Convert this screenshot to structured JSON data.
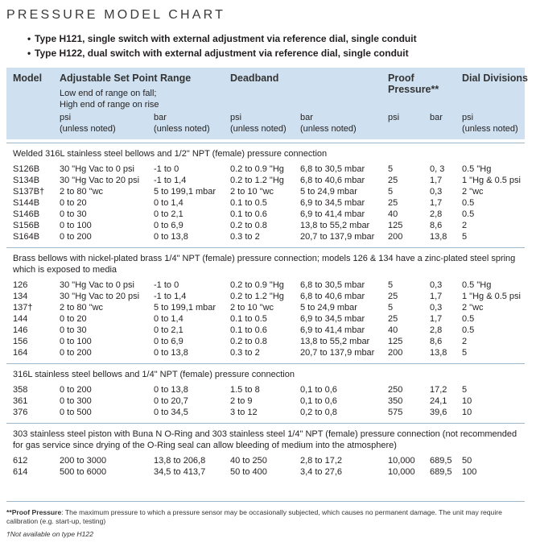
{
  "title": "PRESSURE MODEL CHART",
  "bullets": [
    "Type H121, single switch with external adjustment via reference dial, single conduit",
    "Type H122, dual switch with external adjustment via reference dial, single conduit"
  ],
  "header": {
    "model": "Model",
    "range": "Adjustable Set Point Range",
    "range_note1": "Low end of range on fall;",
    "range_note2": "High end of range on rise",
    "deadband": "Deadband",
    "proof1": "Proof",
    "proof2": "Pressure**",
    "dial": "Dial Divisions",
    "psi": "psi",
    "bar": "bar",
    "unless": "(unless noted)"
  },
  "sections": [
    {
      "title": "Welded 316L stainless steel bellows and 1/2\" NPT (female) pressure connection",
      "rows": [
        [
          "S126B",
          "30 \"Hg Vac to 0 psi",
          "-1 to 0",
          "0.2 to 0.9 \"Hg",
          "6,8 to 30,5 mbar",
          "5",
          "0, 3",
          "0.5 \"Hg"
        ],
        [
          "S134B",
          "30 \"Hg Vac to 20 psi",
          "-1 to 1,4",
          "0.2 to 1.2 \"Hg",
          "6,8 to 40,6 mbar",
          "25",
          "1,7",
          "1 \"Hg & 0.5 psi"
        ],
        [
          "S137B†",
          "2 to 80 \"wc",
          "5 to 199,1 mbar",
          "2 to 10 \"wc",
          "5 to 24,9 mbar",
          "5",
          "0,3",
          "2 \"wc"
        ],
        [
          "S144B",
          "0 to 20",
          "0 to 1,4",
          "0.1 to 0.5",
          "6,9 to 34,5 mbar",
          "25",
          "1,7",
          "0.5"
        ],
        [
          "S146B",
          "0 to 30",
          "0 to 2,1",
          "0.1 to 0.6",
          "6,9 to 41,4 mbar",
          "40",
          "2,8",
          "0.5"
        ],
        [
          "S156B",
          "0 to 100",
          "0 to 6,9",
          "0.2 to 0.8",
          "13,8 to 55,2 mbar",
          "125",
          "8,6",
          "2"
        ],
        [
          "S164B",
          "0 to 200",
          "0 to 13,8",
          "0.3 to 2",
          "20,7 to 137,9 mbar",
          "200",
          "13,8",
          "5"
        ]
      ]
    },
    {
      "title": "Brass bellows with nickel-plated brass 1/4\" NPT (female) pressure connection; models 126 & 134 have a zinc-plated steel spring which is exposed to media",
      "rows": [
        [
          "126",
          "30 \"Hg Vac to 0 psi",
          "-1 to 0",
          "0.2 to 0.9 \"Hg",
          "6,8 to 30,5 mbar",
          "5",
          "0,3",
          "0.5 \"Hg"
        ],
        [
          "134",
          "30 \"Hg Vac to 20 psi",
          "-1 to 1,4",
          "0.2 to 1.2 \"Hg",
          "6,8 to 40,6 mbar",
          "25",
          "1,7",
          "1 \"Hg & 0.5 psi"
        ],
        [
          "137†",
          "2 to 80 \"wc",
          "5 to 199,1 mbar",
          "2 to 10 \"wc",
          "5 to 24,9 mbar",
          "5",
          "0,3",
          "2 \"wc"
        ],
        [
          "144",
          "0 to 20",
          "0 to 1,4",
          "0.1 to 0.5",
          "6,9 to 34,5 mbar",
          "25",
          "1,7",
          "0.5"
        ],
        [
          "146",
          "0 to 30",
          "0 to 2,1",
          "0.1 to 0.6",
          "6,9 to 41,4 mbar",
          "40",
          "2,8",
          "0.5"
        ],
        [
          "156",
          "0 to 100",
          "0 to 6,9",
          "0.2 to 0.8",
          "13,8 to 55,2 mbar",
          "125",
          "8,6",
          "2"
        ],
        [
          "164",
          "0 to 200",
          "0 to 13,8",
          "0.3 to 2",
          "20,7 to 137,9 mbar",
          "200",
          "13,8",
          "5"
        ]
      ]
    },
    {
      "title": "316L stainless steel bellows and 1/4\" NPT (female) pressure connection",
      "rows": [
        [
          "358",
          "0 to 200",
          "0 to 13,8",
          "1.5 to 8",
          "0,1 to 0,6",
          "250",
          "17,2",
          "5"
        ],
        [
          "361",
          "0 to 300",
          "0 to 20,7",
          "2 to 9",
          "0,1 to 0,6",
          "350",
          "24,1",
          "10"
        ],
        [
          "376",
          "0 to 500",
          "0 to 34,5",
          "3 to 12",
          "0,2 to 0,8",
          "575",
          "39,6",
          "10"
        ]
      ]
    },
    {
      "title": "303 stainless steel piston with Buna N O-Ring and 303 stainless steel 1/4\" NPT (female) pressure connection (not recommended for gas service since drying of the O-Ring seal can allow bleeding of medium into the atmosphere)",
      "rows": [
        [
          "612",
          "200 to 3000",
          "13,8 to 206,8",
          "40 to 250",
          "2,8 to 17,2",
          "10,000",
          "689,5",
          "50"
        ],
        [
          "614",
          "500 to 6000",
          "34,5 to 413,7",
          "50 to 400",
          "3,4 to 27,6",
          "10,000",
          "689,5",
          "100"
        ]
      ]
    }
  ],
  "footnotes": {
    "proof_mark": "**Proof Pressure",
    "proof_text": ": The maximum pressure to which a pressure sensor may be occasionally subjected, which causes no permanent damage. The unit may require calibration (e.g. start-up, testing)",
    "dagger": "†Not available on type H122"
  }
}
